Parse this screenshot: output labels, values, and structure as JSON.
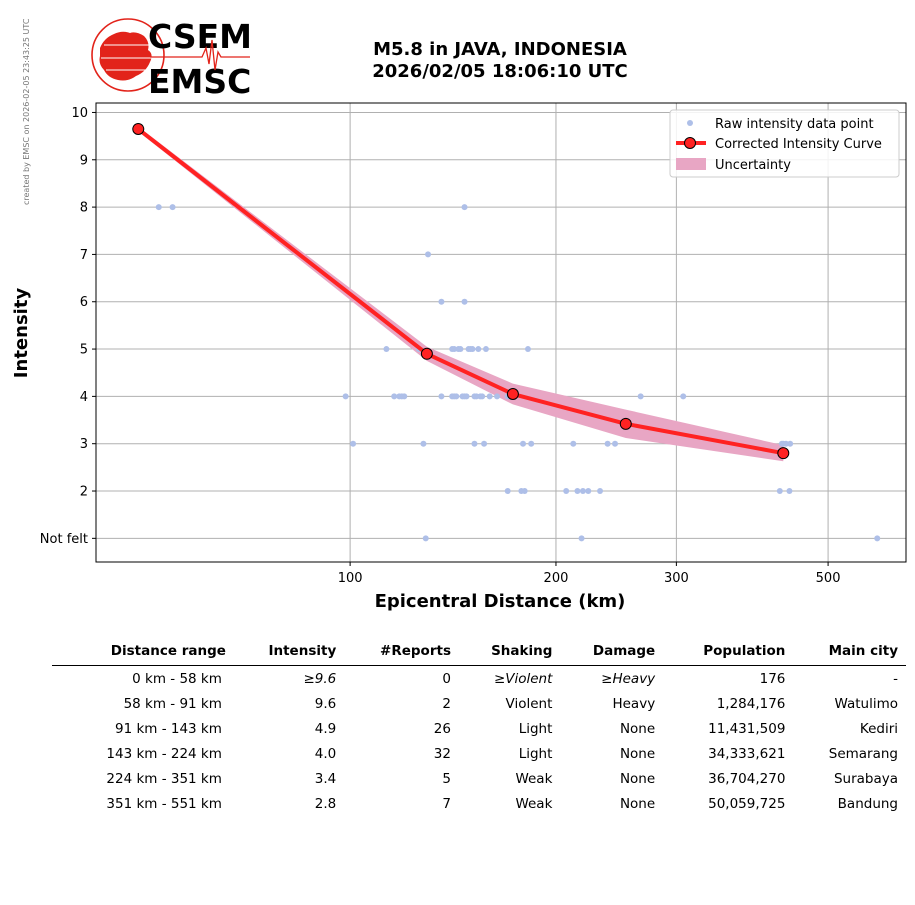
{
  "header": {
    "title_line1": "M5.8 in JAVA, INDONESIA",
    "title_line2": "2026/02/05 18:06:10 UTC",
    "logo_text_top": "CSEM",
    "logo_text_bottom": "EMSC",
    "watermark": "created by EMSC on 2026-02-05 23:43:25 UTC"
  },
  "colors": {
    "raw": "#aebfe8",
    "curve": "#ff2222",
    "uncertainty": "#e8a6c4",
    "logo": "#e2231a"
  },
  "chart_data": {
    "type": "scatter",
    "xscale": "log",
    "xlabel": "Epicentral Distance (km)",
    "ylabel": "Intensity",
    "xlim": [
      42.5,
      650
    ],
    "ylim": [
      0.5,
      10.2
    ],
    "xticks": [
      100,
      200,
      300,
      500
    ],
    "yticks": [
      1,
      2,
      3,
      4,
      5,
      6,
      7,
      8,
      9,
      10
    ],
    "ytick_labels": [
      "Not felt",
      "2",
      "3",
      "4",
      "5",
      "6",
      "7",
      "8",
      "9",
      "10"
    ],
    "grid": true,
    "legend": {
      "position": "top-right",
      "entries": [
        "Raw intensity data point",
        "Corrected Intensity Curve",
        "Uncertainty"
      ]
    },
    "series": [
      {
        "name": "Raw intensity data point",
        "kind": "scatter",
        "points": [
          [
            52.5,
            8
          ],
          [
            55,
            8
          ],
          [
            147,
            8
          ],
          [
            130,
            7
          ],
          [
            136,
            6
          ],
          [
            147,
            6
          ],
          [
            113,
            5
          ],
          [
            126,
            5
          ],
          [
            141,
            5
          ],
          [
            142,
            5
          ],
          [
            144,
            5
          ],
          [
            145,
            5
          ],
          [
            149,
            5
          ],
          [
            150,
            5
          ],
          [
            151,
            5
          ],
          [
            154,
            5
          ],
          [
            158,
            5
          ],
          [
            182,
            5
          ],
          [
            98.5,
            4
          ],
          [
            116,
            4
          ],
          [
            118,
            4
          ],
          [
            119,
            4
          ],
          [
            120,
            4
          ],
          [
            136,
            4
          ],
          [
            141,
            4
          ],
          [
            142,
            4
          ],
          [
            143,
            4
          ],
          [
            146,
            4
          ],
          [
            147,
            4
          ],
          [
            148,
            4
          ],
          [
            152,
            4
          ],
          [
            153,
            4
          ],
          [
            155,
            4
          ],
          [
            156,
            4
          ],
          [
            160,
            4
          ],
          [
            164,
            4
          ],
          [
            170,
            4
          ],
          [
            266,
            4
          ],
          [
            307,
            4
          ],
          [
            101,
            3
          ],
          [
            128,
            3
          ],
          [
            152,
            3
          ],
          [
            157,
            3
          ],
          [
            179,
            3
          ],
          [
            184,
            3
          ],
          [
            212,
            3
          ],
          [
            238,
            3
          ],
          [
            244,
            3
          ],
          [
            428,
            3
          ],
          [
            430,
            3
          ],
          [
            434,
            3
          ],
          [
            440,
            3
          ],
          [
            170,
            2
          ],
          [
            178,
            2
          ],
          [
            180,
            2
          ],
          [
            207,
            2
          ],
          [
            215,
            2
          ],
          [
            219,
            2
          ],
          [
            223,
            2
          ],
          [
            232,
            2
          ],
          [
            425,
            2
          ],
          [
            439,
            2
          ],
          [
            129,
            1
          ],
          [
            218,
            1
          ],
          [
            590,
            1
          ]
        ]
      },
      {
        "name": "Corrected Intensity Curve",
        "kind": "line",
        "x": [
          49,
          129.5,
          173,
          253,
          430
        ],
        "y": [
          9.65,
          4.9,
          4.05,
          3.42,
          2.8
        ],
        "uncertainty_low": [
          9.6,
          4.75,
          3.83,
          3.12,
          2.63
        ],
        "uncertainty_high": [
          9.7,
          5.05,
          4.27,
          3.72,
          2.97
        ]
      }
    ]
  },
  "table": {
    "headers": [
      "Distance range",
      "Intensity",
      "#Reports",
      "Shaking",
      "Damage",
      "Population",
      "Main city"
    ],
    "rows": [
      [
        "0 km -   58 km",
        "≥9.6",
        "0",
        "≥Violent",
        "≥Heavy",
        "176",
        "-"
      ],
      [
        "58 km -   91 km",
        "9.6",
        "2",
        "Violent",
        "Heavy",
        "1,284,176",
        "Watulimo"
      ],
      [
        "91 km -  143 km",
        "4.9",
        "26",
        "Light",
        "None",
        "11,431,509",
        "Kediri"
      ],
      [
        "143 km -  224 km",
        "4.0",
        "32",
        "Light",
        "None",
        "34,333,621",
        "Semarang"
      ],
      [
        "224 km -  351 km",
        "3.4",
        "5",
        "Weak",
        "None",
        "36,704,270",
        "Surabaya"
      ],
      [
        "351 km -  551 km",
        "2.8",
        "7",
        "Weak",
        "None",
        "50,059,725",
        "Bandung"
      ]
    ]
  }
}
